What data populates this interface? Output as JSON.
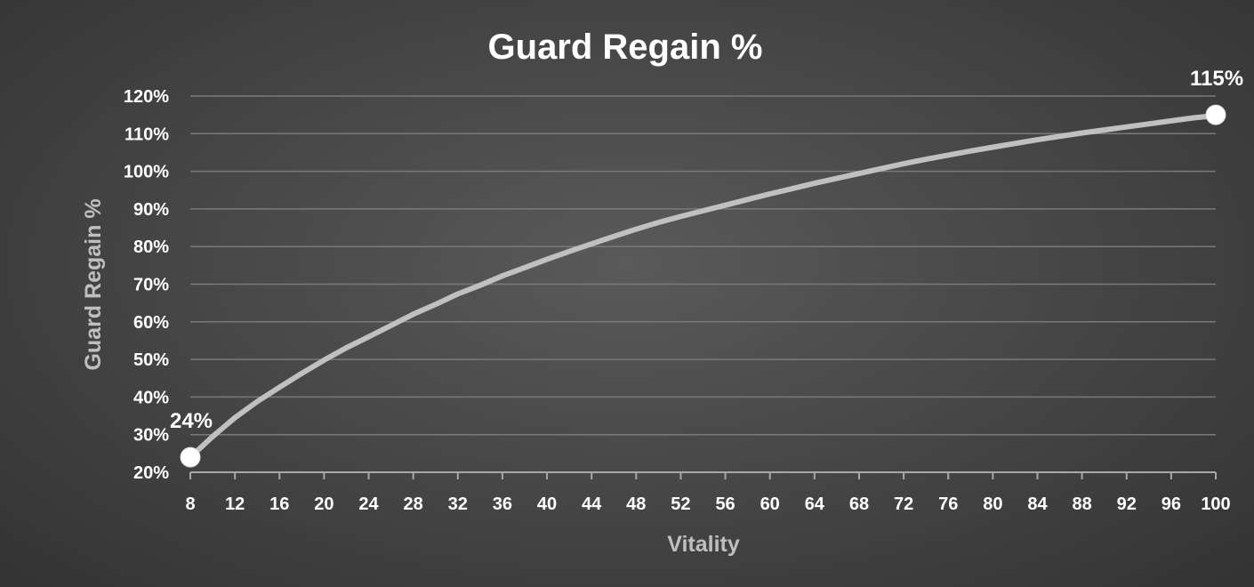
{
  "chart_data": {
    "type": "line",
    "title": "Guard Regain %",
    "xlabel": "Vitality",
    "ylabel": "Guard Regain %",
    "x_ticks": [
      "8",
      "12",
      "16",
      "20",
      "24",
      "28",
      "32",
      "36",
      "40",
      "44",
      "48",
      "52",
      "56",
      "60",
      "64",
      "68",
      "72",
      "76",
      "80",
      "84",
      "88",
      "92",
      "96",
      "100"
    ],
    "y_ticks": [
      "20%",
      "30%",
      "40%",
      "50%",
      "60%",
      "70%",
      "80%",
      "90%",
      "100%",
      "110%",
      "120%"
    ],
    "xlim": [
      8,
      100
    ],
    "ylim": [
      20,
      120
    ],
    "series": [
      {
        "name": "Guard Regain %",
        "x": [
          8,
          10,
          12,
          14,
          16,
          18,
          20,
          22,
          24,
          26,
          28,
          30,
          32,
          34,
          36,
          38,
          40,
          42,
          44,
          46,
          48,
          50,
          52,
          54,
          56,
          58,
          60,
          62,
          64,
          66,
          68,
          70,
          72,
          74,
          76,
          78,
          80,
          82,
          84,
          86,
          88,
          90,
          92,
          94,
          96,
          98,
          100
        ],
        "y": [
          24,
          29.5,
          34.5,
          38.8,
          42.6,
          46.3,
          49.8,
          53.1,
          56,
          59,
          62,
          64.6,
          67.4,
          69.7,
          72.2,
          74.4,
          76.6,
          78.7,
          80.7,
          82.7,
          84.6,
          86.4,
          88,
          89.5,
          91,
          92.5,
          94,
          95.4,
          96.8,
          98.1,
          99.4,
          100.7,
          102,
          103.2,
          104.3,
          105.4,
          106.4,
          107.4,
          108.4,
          109.3,
          110.2,
          111,
          111.8,
          112.6,
          113.4,
          114.2,
          114.8
        ]
      }
    ],
    "data_labels": [
      {
        "x": 8,
        "y": 24,
        "text": "24%"
      },
      {
        "x": 100,
        "y": 115,
        "text": "115%"
      }
    ],
    "grid": true,
    "colors": {
      "line": "#c0c0c0",
      "grid": "#7a7a7a",
      "text": "#ffffff",
      "axis_label": "#bfbfbf",
      "marker": "#ffffff"
    }
  }
}
